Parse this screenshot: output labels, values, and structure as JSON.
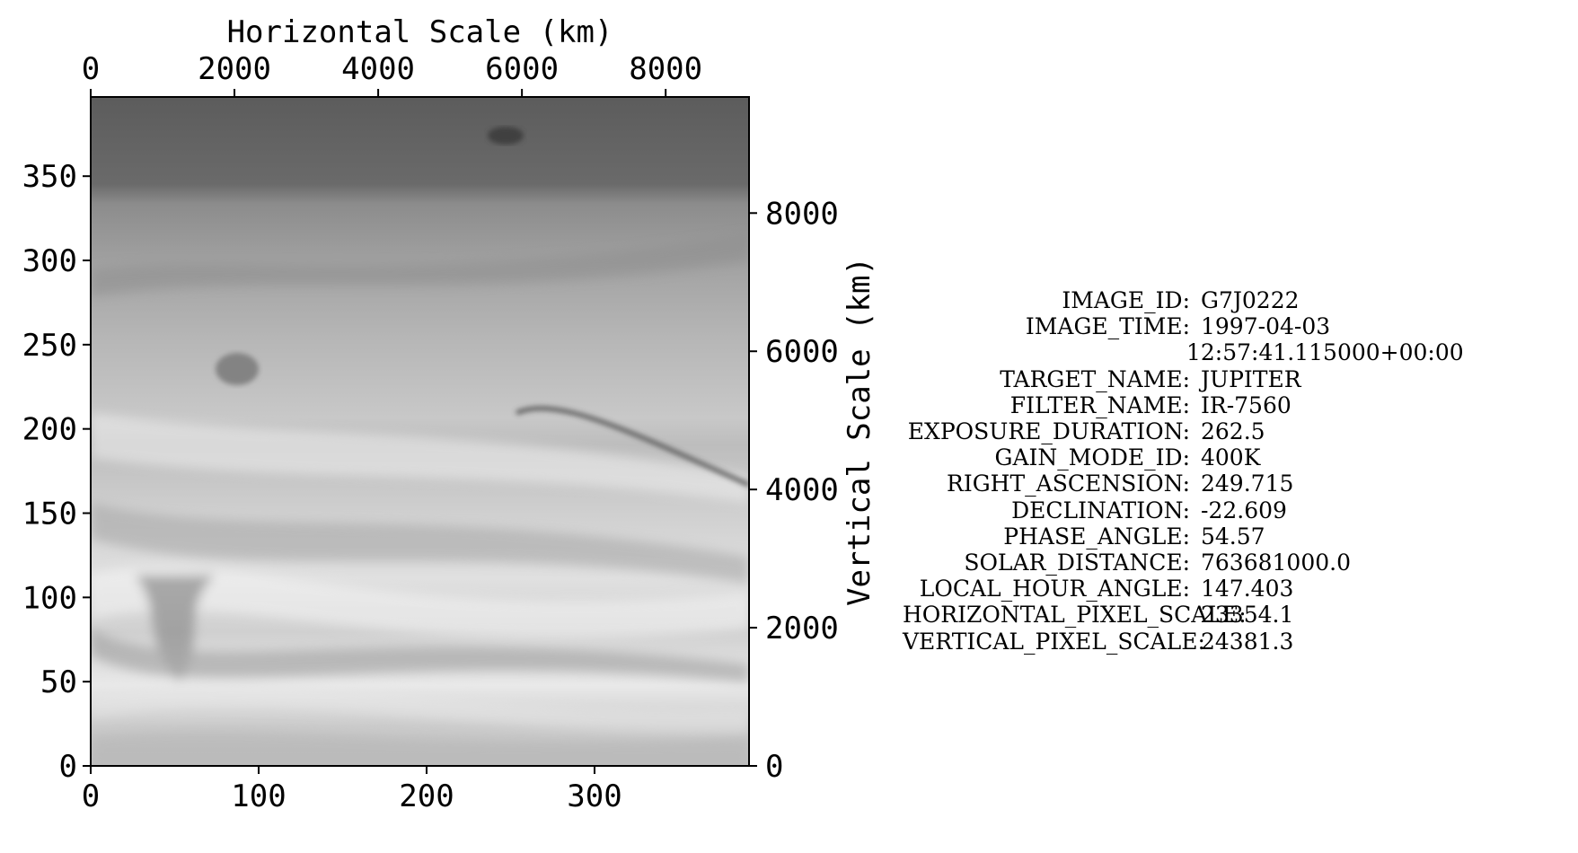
{
  "figure": {
    "top_axis": {
      "title": "Horizontal Scale (km)",
      "range": [
        0,
        9160
      ],
      "ticks": [
        0,
        2000,
        4000,
        6000,
        8000
      ],
      "tick_labels": [
        "0",
        "2000",
        "4000",
        "6000",
        "8000"
      ]
    },
    "right_axis": {
      "title": "Vertical Scale (km)",
      "range": [
        0,
        9680
      ],
      "ticks": [
        0,
        2000,
        4000,
        6000,
        8000
      ],
      "tick_labels": [
        "0",
        "2000",
        "4000",
        "6000",
        "8000"
      ]
    },
    "bottom_axis": {
      "range": [
        0,
        392
      ],
      "ticks": [
        0,
        100,
        200,
        300
      ],
      "tick_labels": [
        "0",
        "100",
        "200",
        "300"
      ]
    },
    "left_axis": {
      "range": [
        0,
        397
      ],
      "ticks": [
        0,
        50,
        100,
        150,
        200,
        250,
        300,
        350
      ],
      "tick_labels": [
        "0",
        "50",
        "100",
        "150",
        "200",
        "250",
        "300",
        "350"
      ]
    },
    "image": {
      "subject": "grayscale Jupiter cloud bands",
      "colors": {
        "dark_band": "#5a5a5a",
        "mid": "#9c9c9c",
        "light": "#dcdcdc",
        "white": "#f2f2f2",
        "spot": "#838383"
      }
    }
  },
  "metadata": {
    "rows": [
      {
        "key": "IMAGE_ID:",
        "value": "G7J0222"
      },
      {
        "key": "IMAGE_TIME:",
        "value": "1997-04-03"
      },
      {
        "key": "",
        "value": "12:57:41.115000+00:00"
      },
      {
        "key": "TARGET_NAME:",
        "value": "JUPITER"
      },
      {
        "key": "FILTER_NAME:",
        "value": "IR-7560"
      },
      {
        "key": "EXPOSURE_DURATION:",
        "value": "262.5"
      },
      {
        "key": "GAIN_MODE_ID:",
        "value": "400K"
      },
      {
        "key": "RIGHT_ASCENSION:",
        "value": "249.715"
      },
      {
        "key": "DECLINATION:",
        "value": "-22.609"
      },
      {
        "key": "PHASE_ANGLE:",
        "value": "54.57"
      },
      {
        "key": "SOLAR_DISTANCE:",
        "value": "763681000.0"
      },
      {
        "key": "LOCAL_HOUR_ANGLE:",
        "value": "147.403"
      },
      {
        "key": "HORIZONTAL_PIXEL_SCALE:",
        "value": "23354.1"
      },
      {
        "key": "VERTICAL_PIXEL_SCALE:",
        "value": "24381.3"
      }
    ]
  }
}
